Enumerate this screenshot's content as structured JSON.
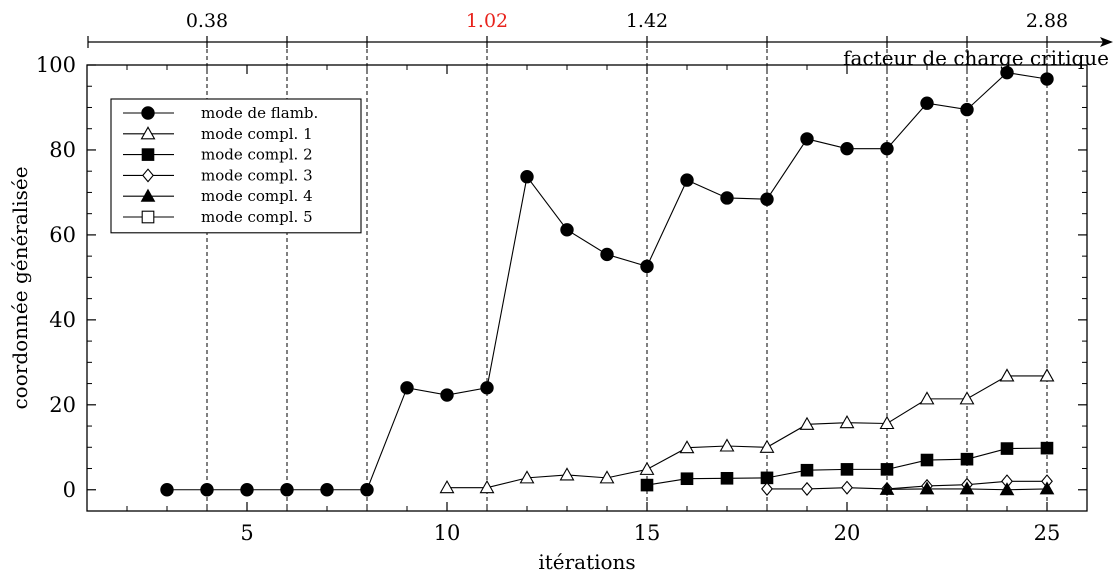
{
  "chart_data": {
    "type": "line",
    "xlabel": "itérations",
    "ylabel": "coordonnée généralisée",
    "xlim": [
      1,
      26
    ],
    "ylim": [
      -5,
      100
    ],
    "xticks": [
      5,
      10,
      15,
      20,
      25
    ],
    "yticks": [
      0,
      20,
      40,
      60,
      80,
      100
    ],
    "grid": false,
    "legend_position": "top-left",
    "critical_load_axis": {
      "label": "facteur de charge critique",
      "marker_iterations": [
        4,
        6,
        8,
        11,
        15,
        18,
        21,
        23,
        25
      ],
      "labels": [
        {
          "iteration": 4,
          "text": "0.38",
          "color": "#000000"
        },
        {
          "iteration": 11,
          "text": "1.02",
          "color": "#e8231c"
        },
        {
          "iteration": 15,
          "text": "1.42",
          "color": "#000000"
        },
        {
          "iteration": 25,
          "text": "2.88",
          "color": "#000000"
        }
      ]
    },
    "series": [
      {
        "name": "mode de flamb.",
        "marker": "filled-circle",
        "x": [
          3,
          4,
          5,
          6,
          7,
          8,
          9,
          10,
          11,
          12,
          13,
          14,
          15,
          16,
          17,
          18,
          19,
          20,
          21,
          22,
          23,
          24,
          25
        ],
        "values": [
          0,
          0,
          0,
          0,
          0,
          0,
          24,
          22.3,
          24,
          73.7,
          61.2,
          55.4,
          52.6,
          72.9,
          68.7,
          68.4,
          82.6,
          80.3,
          80.3,
          91,
          89.5,
          98.2,
          96.7
        ]
      },
      {
        "name": "mode compl. 1",
        "marker": "open-triangle",
        "x": [
          10,
          11,
          12,
          13,
          14,
          15,
          16,
          17,
          18,
          19,
          20,
          21,
          22,
          23,
          24,
          25
        ],
        "values": [
          0.5,
          0.5,
          2.8,
          3.5,
          2.8,
          4.8,
          9.9,
          10.3,
          10,
          15.4,
          15.8,
          15.6,
          21.4,
          21.4,
          26.8,
          26.8
        ]
      },
      {
        "name": "mode compl. 2",
        "marker": "filled-square",
        "x": [
          15,
          16,
          17,
          18,
          19,
          20,
          21,
          22,
          23,
          24,
          25
        ],
        "values": [
          1.1,
          2.6,
          2.7,
          2.8,
          4.6,
          4.8,
          4.8,
          7,
          7.2,
          9.7,
          9.8
        ]
      },
      {
        "name": "mode compl. 3",
        "marker": "open-diamond",
        "x": [
          18,
          19,
          20,
          21,
          22,
          23,
          24,
          25
        ],
        "values": [
          0.2,
          0.2,
          0.5,
          0.2,
          0.9,
          1.2,
          2,
          2
        ]
      },
      {
        "name": "mode compl. 4",
        "marker": "filled-triangle",
        "x": [
          21,
          22,
          23,
          24,
          25
        ],
        "values": [
          0.1,
          0.2,
          0.2,
          0,
          0.2
        ]
      },
      {
        "name": "mode compl. 5",
        "marker": "open-square",
        "x": [],
        "values": []
      }
    ]
  }
}
